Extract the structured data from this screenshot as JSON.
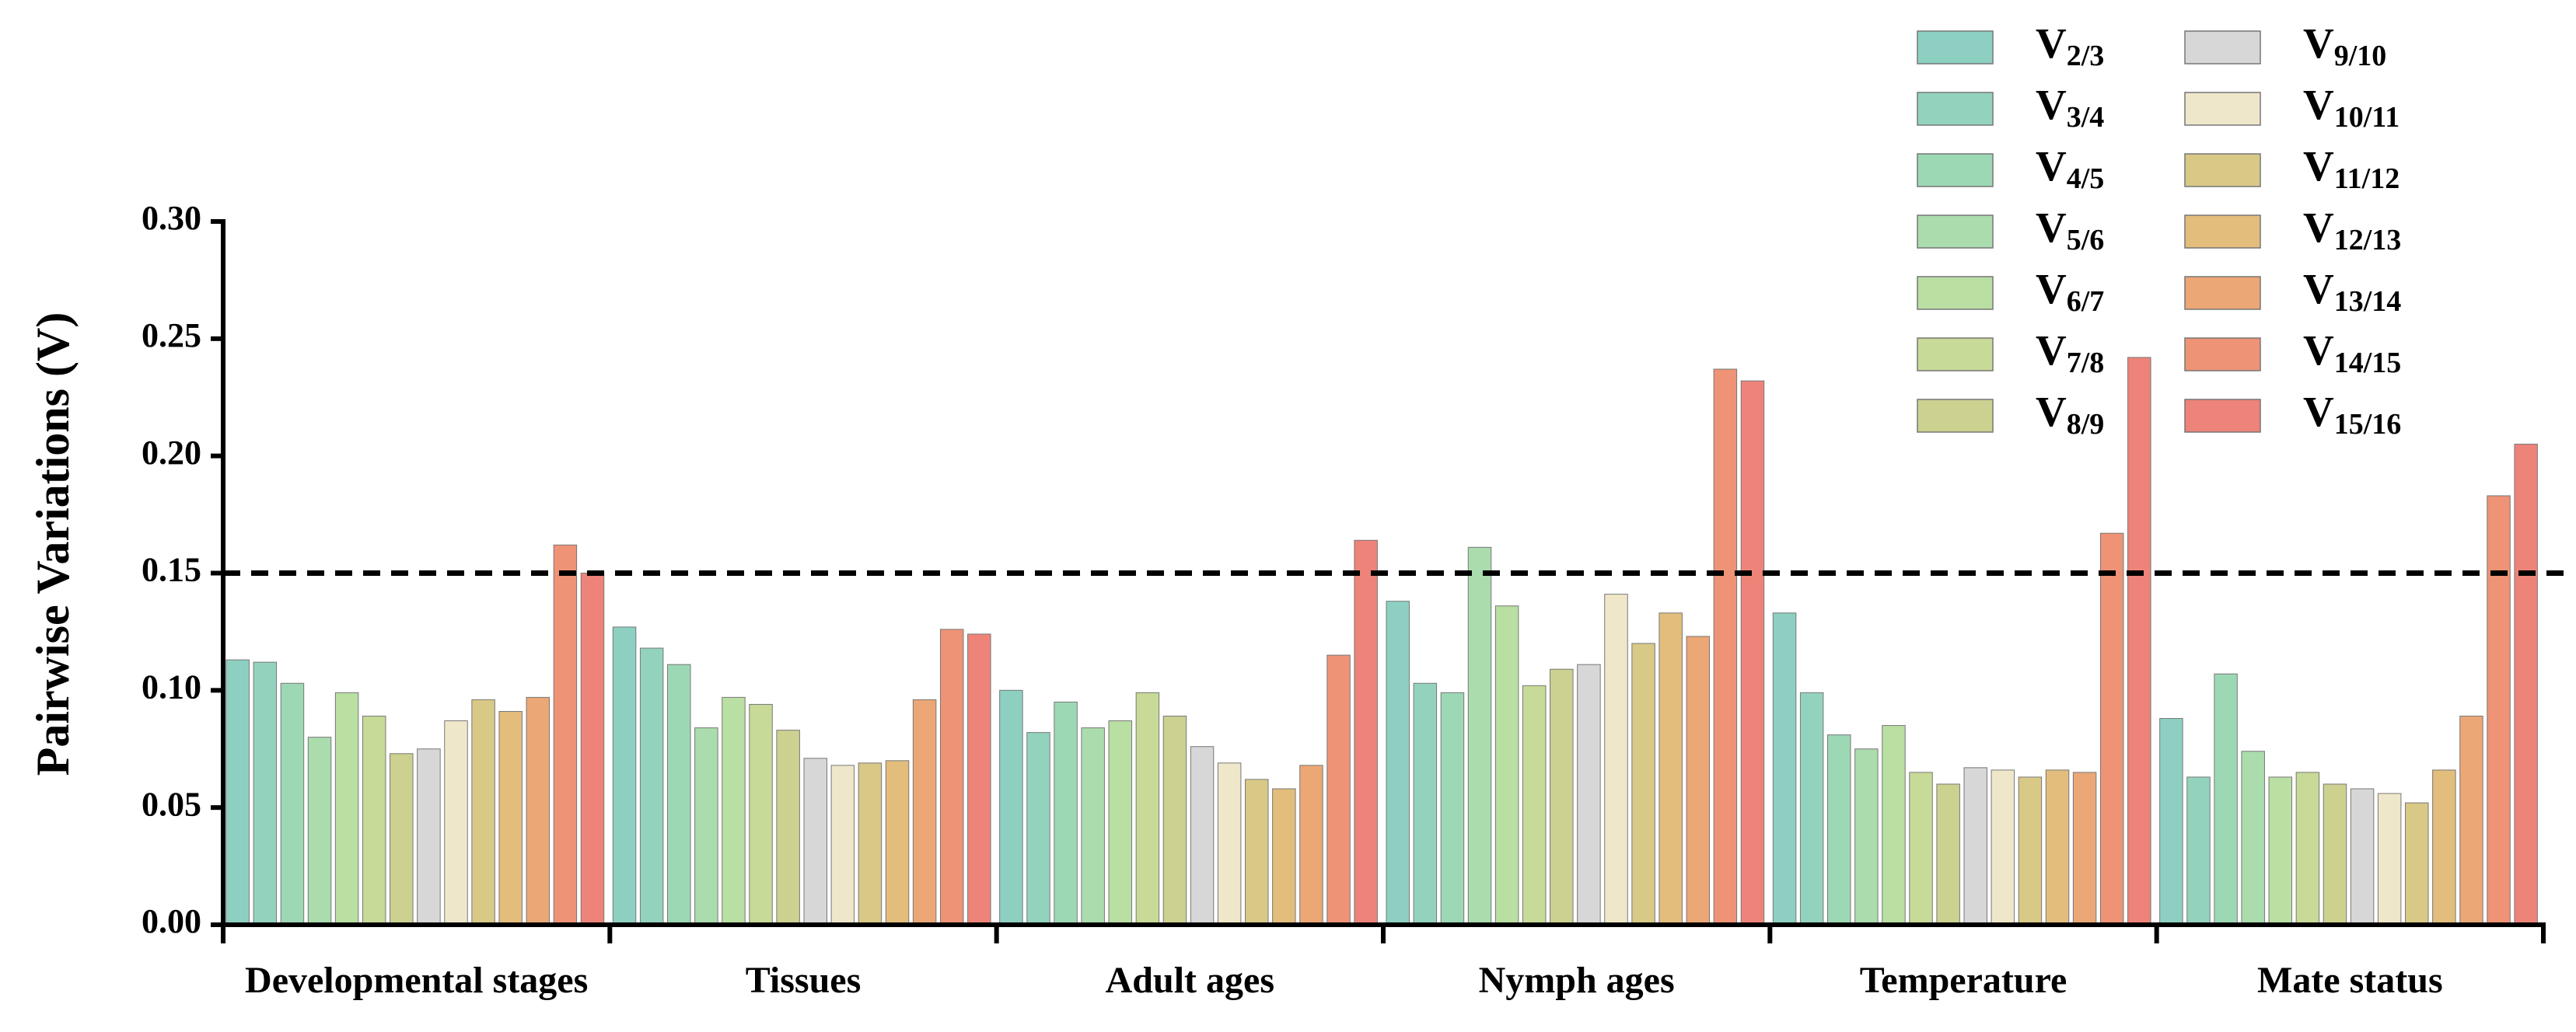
{
  "chart_data": {
    "type": "bar",
    "y_label": "Pairwise Variations (V)",
    "categories": [
      "Developmental stages",
      "Tissues",
      "Adult ages",
      "Nymph ages",
      "Temperature",
      "Mate status"
    ],
    "series": [
      {
        "name": "V2/3",
        "color": "#8dd0c2",
        "values": [
          0.113,
          0.127,
          0.1,
          0.138,
          0.133,
          0.088
        ]
      },
      {
        "name": "V3/4",
        "color": "#93d3be",
        "values": [
          0.112,
          0.118,
          0.082,
          0.103,
          0.099,
          0.063
        ]
      },
      {
        "name": "V4/5",
        "color": "#9dd8b5",
        "values": [
          0.103,
          0.111,
          0.095,
          0.099,
          0.081,
          0.107
        ]
      },
      {
        "name": "V5/6",
        "color": "#aadcad",
        "values": [
          0.08,
          0.084,
          0.084,
          0.161,
          0.075,
          0.074
        ]
      },
      {
        "name": "V6/7",
        "color": "#b9dfa3",
        "values": [
          0.099,
          0.097,
          0.087,
          0.136,
          0.085,
          0.063
        ]
      },
      {
        "name": "V7/8",
        "color": "#c7da97",
        "values": [
          0.089,
          0.094,
          0.099,
          0.102,
          0.065,
          0.065
        ]
      },
      {
        "name": "V8/9",
        "color": "#ccd190",
        "values": [
          0.073,
          0.083,
          0.089,
          0.109,
          0.06,
          0.06
        ]
      },
      {
        "name": "V9/10",
        "color": "#d7d7d7",
        "values": [
          0.075,
          0.071,
          0.076,
          0.111,
          0.067,
          0.058
        ]
      },
      {
        "name": "V10/11",
        "color": "#efe7c9",
        "values": [
          0.087,
          0.068,
          0.069,
          0.141,
          0.066,
          0.056
        ]
      },
      {
        "name": "V11/12",
        "color": "#d9c987",
        "values": [
          0.096,
          0.069,
          0.062,
          0.12,
          0.063,
          0.052
        ]
      },
      {
        "name": "V12/13",
        "color": "#e3bd7c",
        "values": [
          0.091,
          0.07,
          0.058,
          0.133,
          0.066,
          0.066
        ]
      },
      {
        "name": "V13/14",
        "color": "#eba775",
        "values": [
          0.097,
          0.096,
          0.068,
          0.123,
          0.065,
          0.089
        ]
      },
      {
        "name": "V14/15",
        "color": "#ee9375",
        "values": [
          0.162,
          0.126,
          0.115,
          0.237,
          0.167,
          0.183
        ]
      },
      {
        "name": "V15/16",
        "color": "#ee8379",
        "values": [
          0.15,
          0.124,
          0.164,
          0.232,
          0.242,
          0.205
        ]
      }
    ],
    "reference_line": 0.15,
    "ylim": [
      0,
      0.3
    ],
    "yticks": [
      {
        "value": 0,
        "label": "0.00"
      },
      {
        "value": 0.05,
        "label": "0.05"
      },
      {
        "value": 0.1,
        "label": "0.10"
      },
      {
        "value": 0.15,
        "label": "0.15"
      },
      {
        "value": 0.2,
        "label": "0.20"
      },
      {
        "value": 0.25,
        "label": "0.25"
      },
      {
        "value": 0.3,
        "label": "0.30"
      }
    ]
  }
}
